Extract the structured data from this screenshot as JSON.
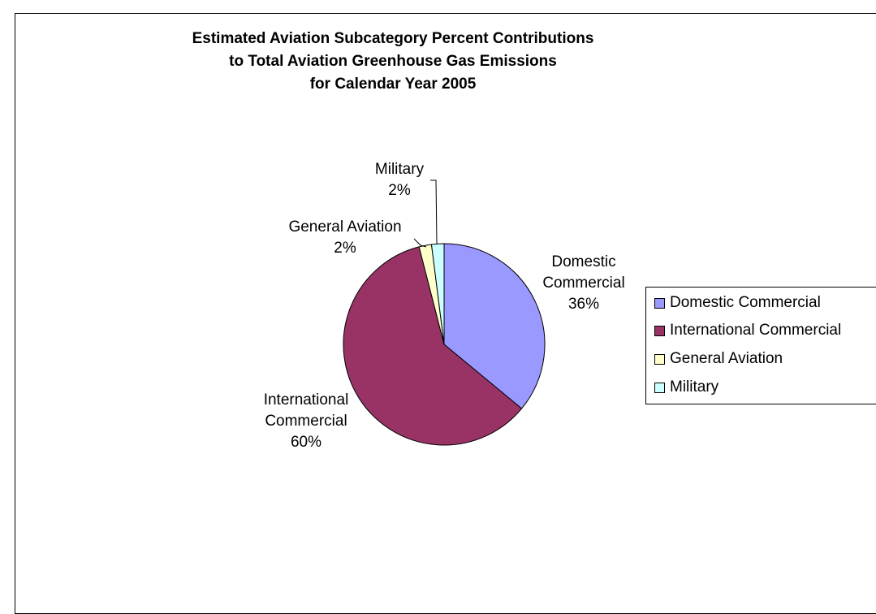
{
  "chart_data": {
    "type": "pie",
    "title": "Estimated Aviation Subcategory Percent Contributions to Total Aviation Greenhouse Gas Emissions for Calendar Year 2005",
    "title_lines": [
      "Estimated Aviation Subcategory Percent Contributions",
      "to Total Aviation Greenhouse Gas Emissions",
      "for Calendar Year 2005"
    ],
    "legend_position": "right",
    "slices": [
      {
        "name": "Domestic Commercial",
        "value": 36,
        "label_lines": [
          "Domestic",
          "Commercial"
        ],
        "pct_label": "36%",
        "color": "#9999FF"
      },
      {
        "name": "International Commercial",
        "value": 60,
        "label_lines": [
          "International",
          "Commercial"
        ],
        "pct_label": "60%",
        "color": "#993366"
      },
      {
        "name": "General Aviation",
        "value": 2,
        "label_lines": [
          "General Aviation"
        ],
        "pct_label": "2%",
        "color": "#FFFFCC"
      },
      {
        "name": "Military",
        "value": 2,
        "label_lines": [
          "Military"
        ],
        "pct_label": "2%",
        "color": "#CCFFFF"
      }
    ]
  }
}
